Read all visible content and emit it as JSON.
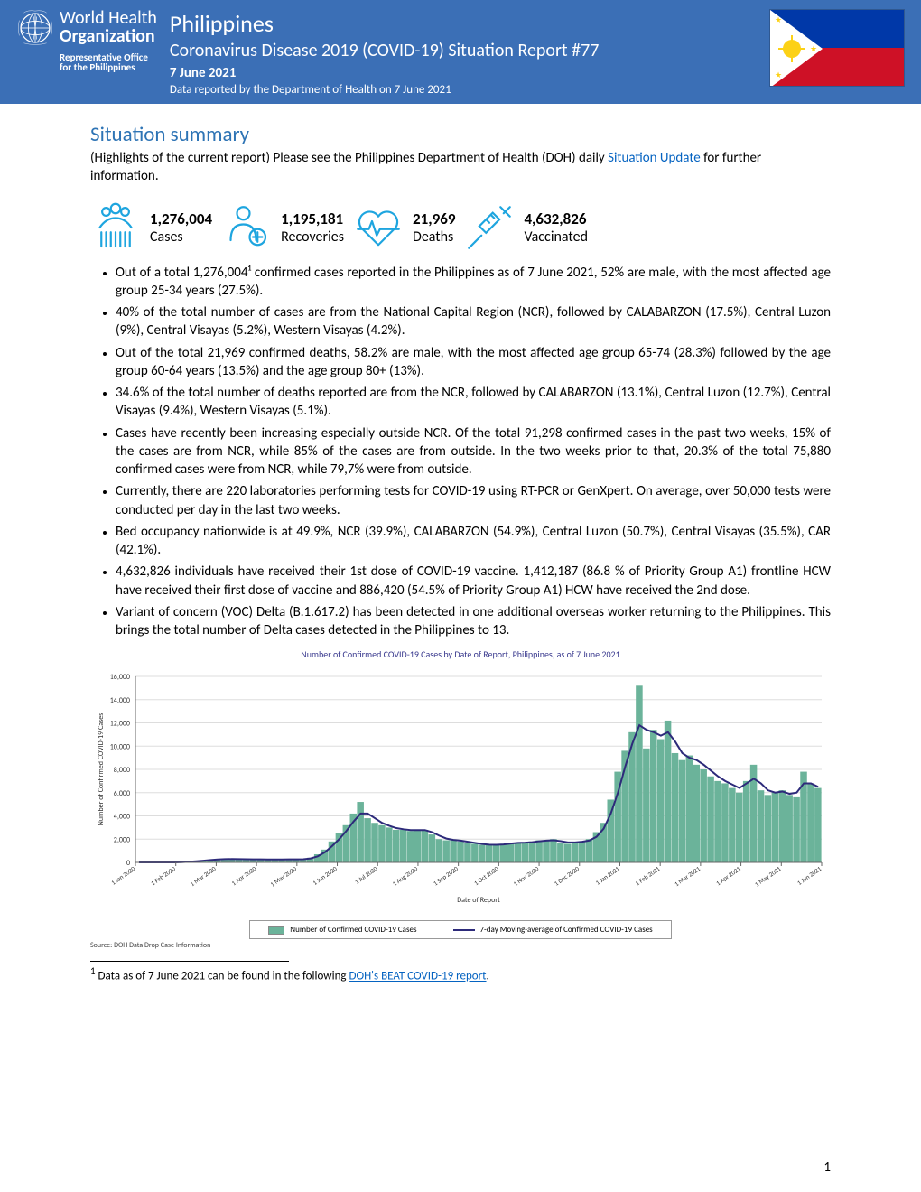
{
  "header": {
    "who_line1": "World Health",
    "who_line2": "Organization",
    "who_sub1": "Representative Office",
    "who_sub2": "for the Philippines",
    "country": "Philippines",
    "title": "Coronavirus Disease 2019 (COVID-19) Situation Report #77",
    "date": "7 June 2021",
    "source": "Data reported by the Department of Health on 7 June 2021",
    "flag_colors": {
      "blue": "#0038a8",
      "red": "#ce1126",
      "yellow": "#fcd116"
    }
  },
  "summary": {
    "heading": "Situation summary",
    "intro_pre": "(Highlights of the current report) Please see the Philippines Department of Health (DOH) daily ",
    "intro_link": "Situation Update",
    "intro_post": " for further information."
  },
  "stats": {
    "cases": {
      "value": "1,276,004",
      "label": "Cases"
    },
    "recoveries": {
      "value": "1,195,181",
      "label": "Recoveries"
    },
    "deaths": {
      "value": "21,969",
      "label": "Deaths"
    },
    "vaccinated": {
      "value": "4,632,826",
      "label": "Vaccinated"
    },
    "icon_color": "#1ea5df"
  },
  "bullets": [
    "Out of a total 1,276,004¹ confirmed cases reported in the Philippines as of 7 June 2021, 52% are male, with the most affected age group 25-34 years (27.5%).",
    "40% of the total number of cases are from the National Capital Region (NCR), followed by CALABARZON (17.5%), Central Luzon (9%), Central Visayas (5.2%), Western Visayas (4.2%).",
    "Out of the total 21,969 confirmed deaths, 58.2% are male, with the most affected age group 65-74 (28.3%) followed by the age group 60-64 years (13.5%) and the age group 80+ (13%).",
    "34.6% of the total number of deaths reported are from the NCR, followed by CALABARZON (13.1%), Central Luzon (12.7%), Central Visayas (9.4%), Western Visayas (5.1%).",
    "Cases have recently been increasing especially outside NCR. Of the total 91,298 confirmed cases in the past two weeks, 15% of the cases are from NCR, while 85% of the cases are from outside. In the two weeks prior to that, 20.3% of the total 75,880 confirmed cases were from NCR, while 79,7% were from outside.",
    "Currently, there are 220 laboratories performing tests for COVID-19 using RT-PCR or GenXpert. On average, over 50,000 tests were conducted per day in the last two weeks.",
    "Bed occupancy nationwide is at 49.9%, NCR (39.9%), CALABARZON (54.9%), Central Luzon (50.7%), Central Visayas (35.5%), CAR (42.1%).",
    "4,632,826 individuals have received their 1st dose of COVID-19 vaccine. 1,412,187 (86.8 % of Priority Group A1) frontline HCW have received their first dose of vaccine and 886,420 (54.5% of Priority Group A1) HCW have received the 2nd dose.",
    "Variant of concern (VOC) Delta (B.1.617.2) has been detected in one additional overseas worker returning to the Philippines. This brings the total number of Delta cases detected in the Philippines to 13."
  ],
  "chart": {
    "title": "Number of Confirmed COVID-19 Cases by Date of Report, Philippines, as of 7 June 2021",
    "source": "Source: DOH Data Drop Case Information",
    "ylabel": "Number of Confirmed COVID-19 Cases",
    "xlabel": "Date of Report",
    "ylim": [
      0,
      16000
    ],
    "ytick_step": 2000,
    "yticks": [
      "0",
      "2,000",
      "4,000",
      "6,000",
      "8,000",
      "10,000",
      "12,000",
      "14,000",
      "16,000"
    ],
    "xticks": [
      "1 Jan 2020",
      "1 Feb 2020",
      "1 Mar 2020",
      "1 Apr 2020",
      "1 May 2020",
      "1 Jun 2020",
      "1 Jul 2020",
      "1 Aug 2020",
      "1 Sep 2020",
      "1 Oct 2020",
      "1 Nov 2020",
      "1 Dec 2020",
      "1 Jan 2021",
      "1 Feb 2021",
      "1 Mar 2021",
      "1 Apr 2021",
      "1 May 2021",
      "1 Jun 2021"
    ],
    "bar_color": "#6bb39a",
    "line_color": "#2d2a7a",
    "grid_color": "#dddddd",
    "background_color": "#ffffff",
    "legend": {
      "series1": "Number of Confirmed COVID-19 Cases",
      "series2": "7-day Moving-average of Confirmed COVID-19 Cases"
    },
    "bars_approx": [
      0,
      0,
      0,
      0,
      0,
      0,
      0,
      50,
      80,
      120,
      180,
      240,
      280,
      300,
      280,
      270,
      260,
      260,
      250,
      250,
      260,
      260,
      260,
      280,
      400,
      700,
      1100,
      1800,
      2500,
      3200,
      4200,
      5200,
      3800,
      3400,
      3200,
      3000,
      2800,
      2800,
      2700,
      2800,
      2800,
      2400,
      2000,
      1900,
      1900,
      1800,
      1700,
      1600,
      1500,
      1500,
      1500,
      1600,
      1700,
      1700,
      1700,
      1800,
      1900,
      1900,
      2000,
      1700,
      1600,
      1700,
      1800,
      2000,
      2600,
      3400,
      5400,
      7800,
      9600,
      11200,
      15200,
      9800,
      11400,
      10600,
      12200,
      9400,
      8800,
      9200,
      8400,
      8000,
      7400,
      7000,
      6800,
      6400,
      6000,
      7000,
      8400,
      6200,
      5800,
      6000,
      6200,
      5800,
      5600,
      7800,
      6800,
      6400
    ],
    "moving_avg_approx": [
      0,
      0,
      0,
      0,
      0,
      0,
      20,
      60,
      100,
      150,
      200,
      250,
      280,
      290,
      280,
      270,
      265,
      258,
      252,
      252,
      255,
      258,
      260,
      270,
      340,
      520,
      870,
      1400,
      2000,
      2700,
      3500,
      4200,
      4200,
      3800,
      3400,
      3150,
      2950,
      2850,
      2780,
      2780,
      2780,
      2600,
      2300,
      2050,
      1930,
      1870,
      1780,
      1680,
      1580,
      1520,
      1510,
      1540,
      1620,
      1680,
      1700,
      1740,
      1820,
      1870,
      1900,
      1830,
      1720,
      1720,
      1780,
      1880,
      2200,
      2900,
      4200,
      6000,
      8200,
      10200,
      11800,
      11400,
      11200,
      10900,
      11200,
      10400,
      9400,
      9000,
      8800,
      8400,
      7900,
      7400,
      7000,
      6700,
      6400,
      6800,
      7200,
      6800,
      6200,
      6000,
      6100,
      5900,
      6000,
      6800,
      6800,
      6500
    ]
  },
  "footnote": {
    "marker": "1",
    "text_pre": " Data as of 7 June 2021 can be found in the following ",
    "link": "DOH's BEAT COVID-19 report",
    "text_post": "."
  },
  "page_number": "1",
  "colors": {
    "header_bg": "#3b6fb6",
    "heading": "#2e74b5",
    "link": "#0563c1"
  }
}
